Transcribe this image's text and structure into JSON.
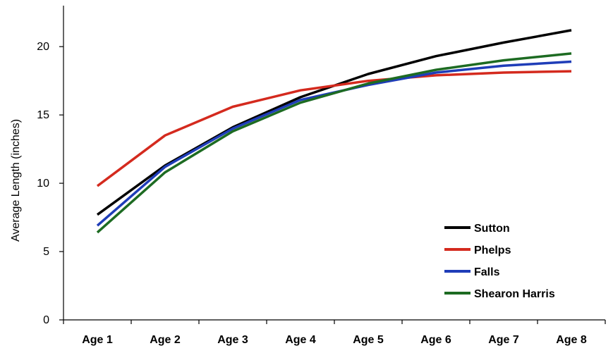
{
  "chart_data": {
    "type": "line",
    "title": "",
    "xlabel": "",
    "ylabel": "Average Length (inches)",
    "categories": [
      "Age 1",
      "Age 2",
      "Age 3",
      "Age 4",
      "Age 5",
      "Age 6",
      "Age 7",
      "Age 8"
    ],
    "ylim": [
      0,
      23
    ],
    "yticks": [
      0,
      5,
      10,
      15,
      20
    ],
    "grid": false,
    "legend_position": "bottom-right",
    "series": [
      {
        "name": "Sutton",
        "color": "#000000",
        "values": [
          7.7,
          11.3,
          14.1,
          16.3,
          18.0,
          19.3,
          20.3,
          21.2
        ]
      },
      {
        "name": "Phelps",
        "color": "#d42a1e",
        "values": [
          9.8,
          13.5,
          15.6,
          16.8,
          17.5,
          17.9,
          18.1,
          18.2
        ]
      },
      {
        "name": "Falls",
        "color": "#1f3db8",
        "values": [
          6.9,
          11.2,
          14.0,
          16.1,
          17.2,
          18.1,
          18.6,
          18.9
        ]
      },
      {
        "name": "Shearon Harris",
        "color": "#1d6b22",
        "values": [
          6.4,
          10.8,
          13.8,
          15.9,
          17.3,
          18.3,
          19.0,
          19.5
        ]
      }
    ]
  }
}
